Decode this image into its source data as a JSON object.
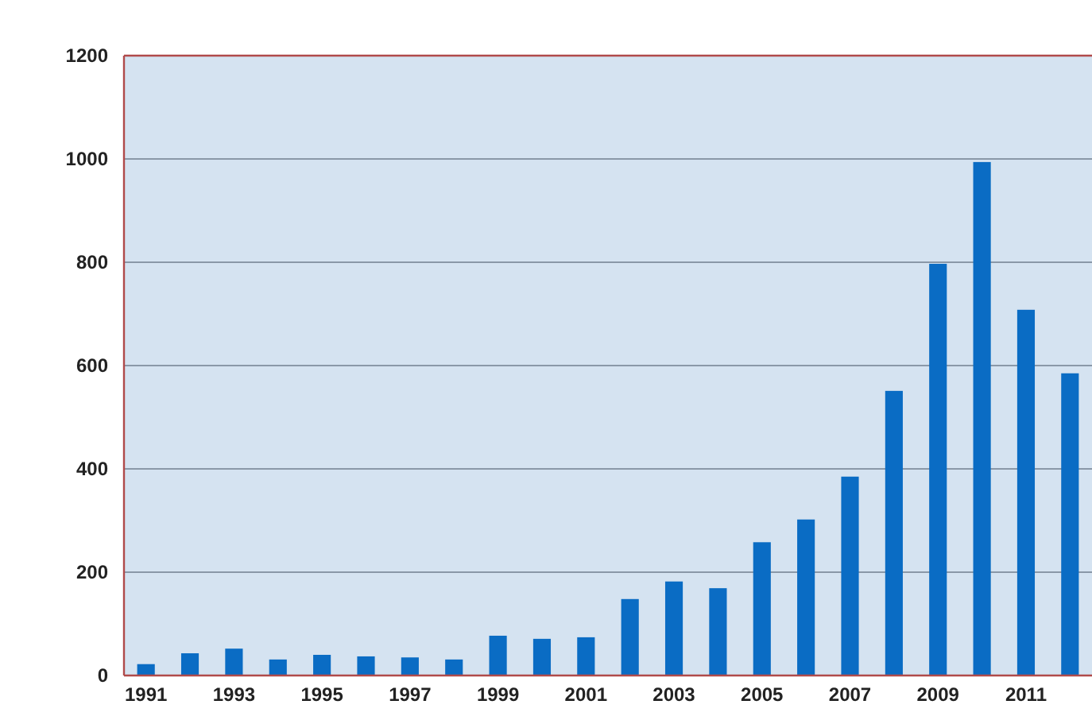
{
  "chart_data": {
    "type": "bar",
    "categories": [
      "1991",
      null,
      "1993",
      null,
      "1995",
      null,
      "1997",
      null,
      "1999",
      null,
      "2001",
      null,
      "2003",
      null,
      "2005",
      null,
      "2007",
      null,
      "2009",
      null,
      "2011",
      null
    ],
    "values": [
      22,
      43,
      52,
      31,
      40,
      37,
      35,
      31,
      77,
      71,
      74,
      148,
      182,
      169,
      258,
      302,
      385,
      551,
      797,
      994,
      708,
      585
    ],
    "color": "#0a6cc4",
    "ylim": [
      0,
      1200
    ],
    "yticks": [
      0,
      200,
      400,
      600,
      800,
      1000,
      1200
    ],
    "grid": "y"
  }
}
